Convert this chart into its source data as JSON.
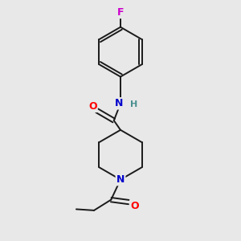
{
  "background_color": "#e8e8e8",
  "bond_color": "#1a1a1a",
  "atom_colors": {
    "F": "#cc00cc",
    "O": "#ff0000",
    "N": "#0000cc",
    "H": "#4a9090",
    "C": "#000000"
  },
  "figsize": [
    3.0,
    3.0
  ],
  "dpi": 100
}
